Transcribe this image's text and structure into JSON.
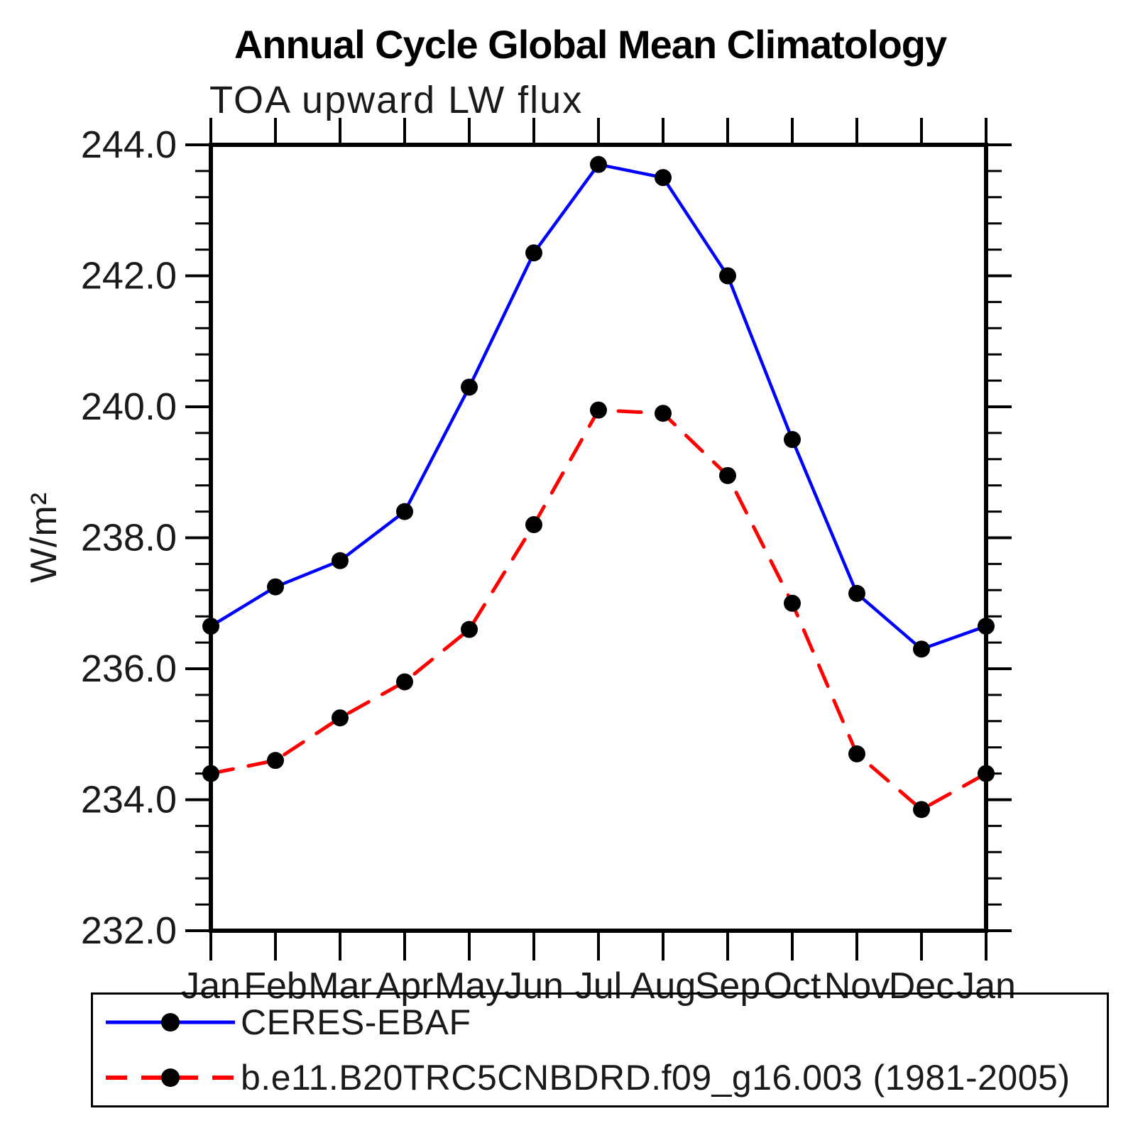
{
  "title": "Annual Cycle Global Mean Climatology",
  "subtitle": "TOA upward LW flux",
  "ylabel": "W/m²",
  "chart_data": {
    "type": "line",
    "title": "Annual Cycle Global Mean Climatology",
    "subtitle": "TOA upward LW flux",
    "xlabel": "",
    "ylabel": "W/m²",
    "x_categories": [
      "Jan",
      "Feb",
      "Mar",
      "Apr",
      "May",
      "Jun",
      "Jul",
      "Aug",
      "Sep",
      "Oct",
      "Nov",
      "Dec",
      "Jan"
    ],
    "ylim": [
      232.0,
      244.0
    ],
    "ytick_major_interval": 2.0,
    "ytick_minor_interval": 0.4,
    "ytick_labels": [
      "232.0",
      "234.0",
      "236.0",
      "238.0",
      "240.0",
      "242.0",
      "244.0"
    ],
    "grid": false,
    "legend_position": "bottom-outside-box",
    "frame_color": "#000000",
    "marker_color": "#000000",
    "series": [
      {
        "name": "CERES-EBAF",
        "color": "#0000ff",
        "line_style": "solid",
        "marker": "circle",
        "values": [
          236.65,
          237.25,
          237.65,
          238.4,
          240.3,
          242.35,
          243.7,
          243.5,
          242.0,
          239.5,
          237.15,
          236.3,
          236.65
        ]
      },
      {
        "name": "b.e11.B20TRC5CNBDRD.f09_g16.003 (1981-2005)",
        "color": "#ff0000",
        "line_style": "dashed",
        "marker": "circle",
        "values": [
          234.4,
          234.6,
          235.25,
          235.8,
          236.6,
          238.2,
          239.95,
          239.9,
          238.95,
          237.0,
          234.7,
          233.85,
          234.4
        ]
      }
    ]
  }
}
